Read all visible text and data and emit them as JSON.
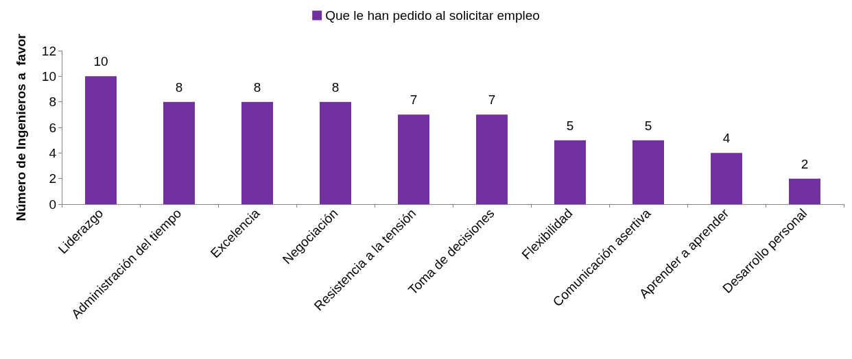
{
  "chart_data": {
    "type": "bar",
    "ylabel": "Número de Ingenieros a  favor",
    "categories": [
      "Liderazgo",
      "Administración del tiempo",
      "Excelencia",
      "Negociación",
      "Resistencia a la tensión",
      "Toma de decisiones",
      "Flexibilidad",
      "Comunicación asertiva",
      "Aprender a aprender",
      "Desarrollo personal"
    ],
    "series": [
      {
        "name": "Que le han pedido al solicitar empleo",
        "color": "#7030a0",
        "values": [
          10,
          8,
          8,
          8,
          7,
          7,
          5,
          5,
          4,
          2
        ]
      }
    ],
    "ylim": [
      0,
      12
    ],
    "yticks": [
      0,
      2,
      4,
      6,
      8,
      10,
      12
    ],
    "grid": false,
    "legend": "top",
    "data_labels": true
  }
}
